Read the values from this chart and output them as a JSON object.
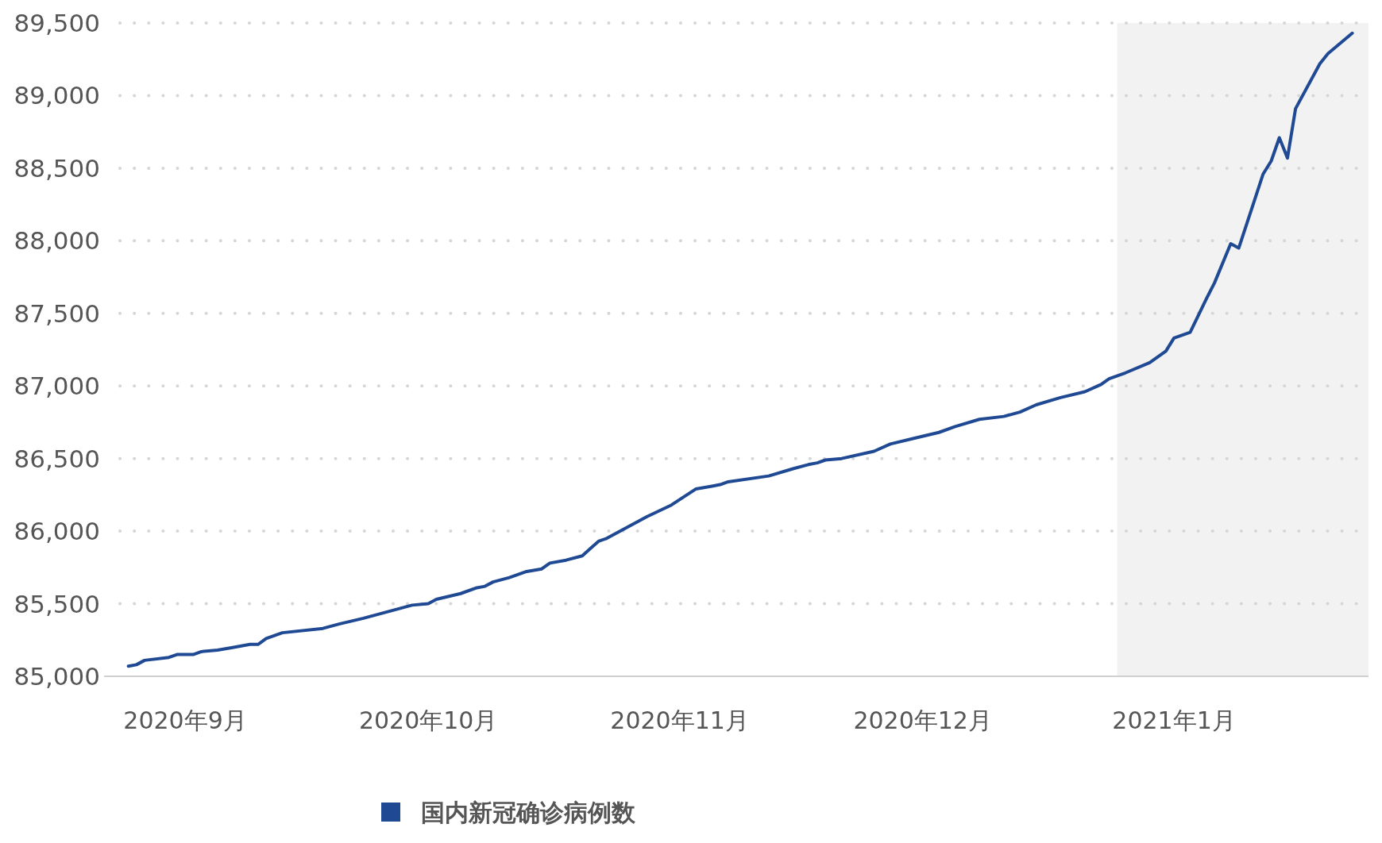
{
  "chart_data": {
    "type": "line",
    "x": [
      "2020-08-25",
      "2020-08-26",
      "2020-08-27",
      "2020-08-30",
      "2020-08-31",
      "2020-09-02",
      "2020-09-03",
      "2020-09-05",
      "2020-09-07",
      "2020-09-09",
      "2020-09-10",
      "2020-09-11",
      "2020-09-13",
      "2020-09-18",
      "2020-09-20",
      "2020-09-23",
      "2020-09-25",
      "2020-09-27",
      "2020-09-29",
      "2020-10-01",
      "2020-10-02",
      "2020-10-05",
      "2020-10-07",
      "2020-10-08",
      "2020-10-09",
      "2020-10-11",
      "2020-10-13",
      "2020-10-15",
      "2020-10-16",
      "2020-10-18",
      "2020-10-20",
      "2020-10-21",
      "2020-10-22",
      "2020-10-23",
      "2020-10-27",
      "2020-10-28",
      "2020-10-31",
      "2020-11-03",
      "2020-11-05",
      "2020-11-06",
      "2020-11-07",
      "2020-11-12",
      "2020-11-15",
      "2020-11-17",
      "2020-11-18",
      "2020-11-19",
      "2020-11-21",
      "2020-11-25",
      "2020-11-27",
      "2020-11-30",
      "2020-12-03",
      "2020-12-05",
      "2020-12-08",
      "2020-12-11",
      "2020-12-13",
      "2020-12-15",
      "2020-12-18",
      "2020-12-21",
      "2020-12-23",
      "2020-12-24",
      "2020-12-26",
      "2020-12-29",
      "2020-12-31",
      "2021-01-01",
      "2021-01-03",
      "2021-01-05",
      "2021-01-06",
      "2021-01-08",
      "2021-01-09",
      "2021-01-12",
      "2021-01-13",
      "2021-01-14",
      "2021-01-15",
      "2021-01-16",
      "2021-01-19",
      "2021-01-20",
      "2021-01-23"
    ],
    "series": [
      {
        "name": "国内新冠确诊病例数",
        "color": "#1f4a93",
        "values": [
          85070,
          85080,
          85110,
          85130,
          85150,
          85150,
          85170,
          85180,
          85200,
          85220,
          85220,
          85260,
          85300,
          85330,
          85360,
          85400,
          85430,
          85460,
          85490,
          85500,
          85530,
          85570,
          85610,
          85620,
          85650,
          85680,
          85720,
          85740,
          85780,
          85800,
          85830,
          85880,
          85930,
          85950,
          86070,
          86100,
          86180,
          86290,
          86310,
          86320,
          86340,
          86380,
          86430,
          86460,
          86470,
          86490,
          86500,
          86550,
          86600,
          86640,
          86680,
          86720,
          86770,
          86790,
          86820,
          86870,
          86920,
          86960,
          87010,
          87050,
          87090,
          87160,
          87240,
          87330,
          87370,
          87600,
          87710,
          87980,
          87950,
          88460,
          88550,
          88710,
          88570,
          88910,
          89220,
          89290,
          89430
        ]
      }
    ],
    "xlim": [
      "2020-08-22",
      "2021-01-25"
    ],
    "xticks": [
      {
        "value": "2020-09-01",
        "label": "2020年9月"
      },
      {
        "value": "2020-10-01",
        "label": "2020年10月"
      },
      {
        "value": "2020-11-01",
        "label": "2020年11月"
      },
      {
        "value": "2020-12-01",
        "label": "2020年12月"
      },
      {
        "value": "2021-01-01",
        "label": "2021年1月"
      }
    ],
    "ylim": [
      85000,
      89500
    ],
    "yticks": [
      {
        "value": 85000,
        "label": "85,000"
      },
      {
        "value": 85500,
        "label": "85,500"
      },
      {
        "value": 86000,
        "label": "86,000"
      },
      {
        "value": 86500,
        "label": "86,500"
      },
      {
        "value": 87000,
        "label": "87,000"
      },
      {
        "value": 87500,
        "label": "87,500"
      },
      {
        "value": 88000,
        "label": "88,000"
      },
      {
        "value": 88500,
        "label": "88,500"
      },
      {
        "value": 89000,
        "label": "89,000"
      },
      {
        "value": 89500,
        "label": "89,500"
      }
    ],
    "bands": [
      {
        "axis": "x",
        "from": "2020-12-25",
        "to": "2021-01-25",
        "color": "#f2f2f2"
      }
    ],
    "grid": "y",
    "legend": "bottom",
    "line_style": "solid",
    "marker": "none"
  }
}
